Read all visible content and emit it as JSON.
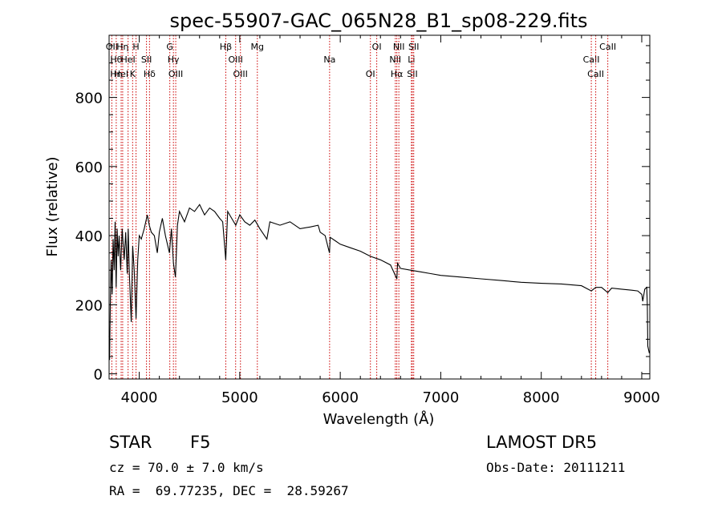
{
  "chart_data": {
    "type": "line",
    "title": "spec-55907-GAC_065N28_B1_sp08-229.fits",
    "xlabel": "Wavelength (Å)",
    "ylabel": "Flux (relative)",
    "xlim": [
      3700,
      9080
    ],
    "ylim": [
      -15,
      980
    ],
    "xticks": [
      4000,
      5000,
      6000,
      7000,
      8000,
      9000
    ],
    "yticks": [
      0,
      200,
      400,
      600,
      800
    ],
    "grid": false,
    "line_color": "#000000",
    "marker_color": "#cc0000",
    "series": [
      {
        "x": [
          3700,
          3705,
          3712,
          3720,
          3730,
          3740,
          3750,
          3760,
          3770,
          3780,
          3790,
          3800,
          3815,
          3830,
          3850,
          3865,
          3880,
          3890,
          3900,
          3920,
          3935,
          3950,
          3968,
          3985,
          4000,
          4020,
          4050,
          4080,
          4100,
          4120,
          4150,
          4180,
          4200,
          4230,
          4260,
          4300,
          4320,
          4340,
          4360,
          4380,
          4400,
          4450,
          4500,
          4550,
          4600,
          4650,
          4700,
          4750,
          4800,
          4830,
          4861,
          4880,
          4920,
          4960,
          5000,
          5050,
          5100,
          5150,
          5200,
          5270,
          5300,
          5400,
          5500,
          5600,
          5700,
          5780,
          5800,
          5850,
          5893,
          5900,
          5950,
          6000,
          6100,
          6200,
          6300,
          6400,
          6500,
          6563,
          6570,
          6600,
          6700,
          6800,
          6900,
          7000,
          7200,
          7400,
          7600,
          7800,
          8000,
          8200,
          8400,
          8498,
          8542,
          8600,
          8662,
          8700,
          8800,
          8900,
          8960,
          9000,
          9010,
          9030,
          9050,
          9055,
          9060,
          9075
        ],
        "y": [
          110,
          40,
          200,
          330,
          230,
          390,
          300,
          440,
          250,
          420,
          340,
          400,
          300,
          420,
          330,
          410,
          290,
          420,
          300,
          150,
          370,
          300,
          160,
          330,
          400,
          390,
          420,
          460,
          430,
          410,
          400,
          350,
          410,
          450,
          400,
          350,
          420,
          320,
          280,
          430,
          470,
          440,
          480,
          470,
          490,
          460,
          480,
          470,
          450,
          440,
          330,
          470,
          450,
          430,
          460,
          440,
          430,
          445,
          420,
          390,
          440,
          430,
          440,
          420,
          425,
          430,
          410,
          400,
          350,
          395,
          385,
          375,
          365,
          355,
          340,
          330,
          315,
          275,
          320,
          305,
          300,
          295,
          290,
          285,
          280,
          275,
          270,
          265,
          262,
          260,
          255,
          240,
          250,
          250,
          235,
          248,
          245,
          242,
          240,
          230,
          210,
          245,
          250,
          200,
          80,
          60
        ]
      }
    ],
    "lines": [
      {
        "x": 3727,
        "labels": [
          "OII"
        ]
      },
      {
        "x": 3771,
        "labels": [
          "Hθ",
          "Hη"
        ]
      },
      {
        "x": 3820,
        "labels": [
          "HeI"
        ]
      },
      {
        "x": 3835,
        "labels": [
          "Hη"
        ]
      },
      {
        "x": 3889,
        "labels": [
          "HeI"
        ]
      },
      {
        "x": 3934,
        "labels": [
          "K"
        ]
      },
      {
        "x": 3968,
        "labels": [
          "H"
        ]
      },
      {
        "x": 4072,
        "labels": [
          "SII"
        ]
      },
      {
        "x": 4102,
        "labels": [
          "Hδ"
        ]
      },
      {
        "x": 4304,
        "labels": [
          "G"
        ]
      },
      {
        "x": 4340,
        "labels": [
          "Hγ"
        ]
      },
      {
        "x": 4363,
        "labels": [
          "OIII"
        ]
      },
      {
        "x": 4861,
        "labels": [
          "Hβ"
        ]
      },
      {
        "x": 4959,
        "labels": [
          "OIII"
        ]
      },
      {
        "x": 5007,
        "labels": [
          "OIII"
        ]
      },
      {
        "x": 5175,
        "labels": [
          "Mg"
        ]
      },
      {
        "x": 5894,
        "labels": [
          "Na"
        ]
      },
      {
        "x": 6300,
        "labels": [
          "OI"
        ]
      },
      {
        "x": 6363,
        "labels": [
          "OI"
        ]
      },
      {
        "x": 6548,
        "labels": [
          "NII"
        ]
      },
      {
        "x": 6563,
        "labels": [
          "Hα"
        ]
      },
      {
        "x": 6583,
        "labels": [
          "NII"
        ]
      },
      {
        "x": 6708,
        "labels": [
          "Li"
        ]
      },
      {
        "x": 6717,
        "labels": [
          "SII"
        ]
      },
      {
        "x": 6731,
        "labels": [
          "SII"
        ]
      },
      {
        "x": 8498,
        "labels": [
          "CaII"
        ]
      },
      {
        "x": 8542,
        "labels": [
          "CaII"
        ]
      },
      {
        "x": 8662,
        "labels": [
          "CaII"
        ]
      }
    ]
  },
  "footer": {
    "object_type": "STAR",
    "subclass": "F5",
    "survey": "LAMOST DR5",
    "redshift": "cz = 70.0 ± 7.0 km/s",
    "obs_date": "Obs-Date: 20111211",
    "coords": "RA =  69.77235, DEC =  28.59267"
  }
}
